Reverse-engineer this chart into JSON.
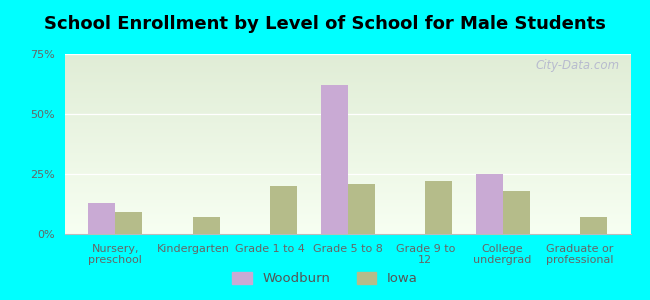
{
  "title": "School Enrollment by Level of School for Male Students",
  "categories": [
    "Nursery,\npreschool",
    "Kindergarten",
    "Grade 1 to 4",
    "Grade 5 to 8",
    "Grade 9 to\n12",
    "College\nundergrad",
    "Graduate or\nprofessional"
  ],
  "woodburn_values": [
    13,
    0,
    0,
    62,
    0,
    25,
    0
  ],
  "iowa_values": [
    9,
    7,
    20,
    21,
    22,
    18,
    7
  ],
  "woodburn_color": "#c9aad4",
  "iowa_color": "#b5bc8a",
  "ylim": [
    0,
    75
  ],
  "yticks": [
    0,
    25,
    50,
    75
  ],
  "ytick_labels": [
    "0%",
    "25%",
    "50%",
    "75%"
  ],
  "background_color": "#00ffff",
  "title_fontsize": 13,
  "tick_fontsize": 8,
  "legend_fontsize": 9.5,
  "bar_width": 0.35,
  "legend_labels": [
    "Woodburn",
    "Iowa"
  ],
  "watermark": "City-Data.com"
}
